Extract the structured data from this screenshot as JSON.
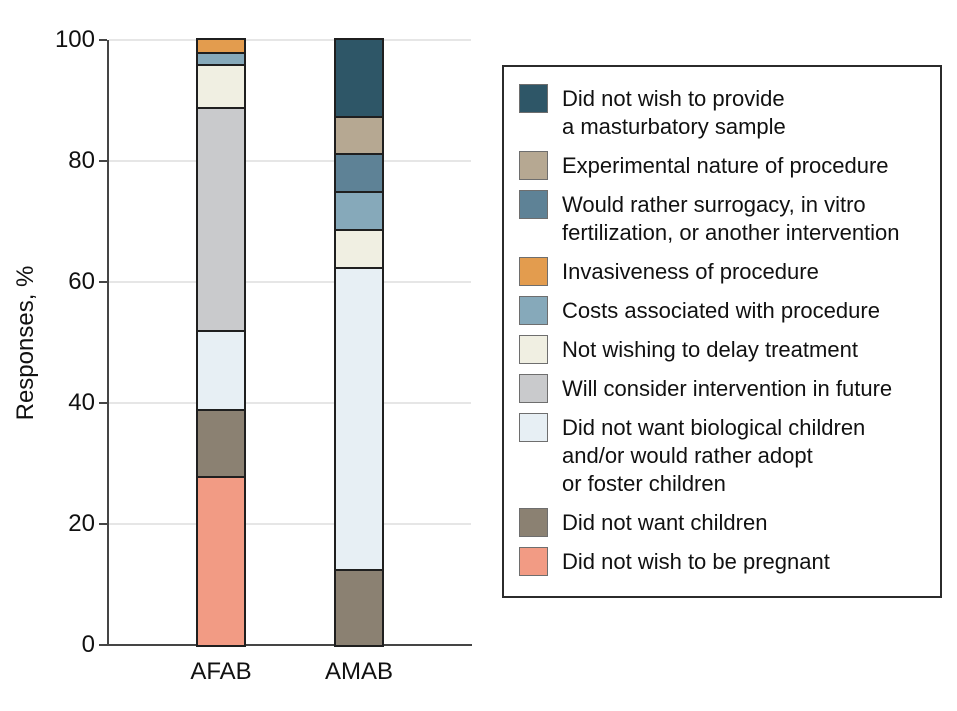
{
  "chart_data": {
    "type": "bar",
    "stacked": true,
    "stack_order": "top-to-bottom",
    "title": "",
    "xlabel": "",
    "ylabel": "Responses, %",
    "ylim": [
      0,
      100
    ],
    "yticks": [
      0,
      20,
      40,
      60,
      80,
      100
    ],
    "grid": true,
    "legend_position": "right",
    "categories": [
      "AFAB",
      "AMAB"
    ],
    "series": [
      {
        "name": "Did not wish to provide a masturbatory sample",
        "label_lines": [
          "Did not wish to provide",
          "a masturbatory sample"
        ],
        "color": "#2e5667",
        "values": [
          0,
          12.5
        ]
      },
      {
        "name": "Experimental nature of procedure",
        "label_lines": [
          "Experimental nature of procedure"
        ],
        "color": "#b6a892",
        "values": [
          0,
          6.25
        ]
      },
      {
        "name": "Would rather surrogacy, in vitro fertilization, or another intervention",
        "label_lines": [
          "Would rather surrogacy, in vitro",
          "fertilization, or another intervention"
        ],
        "color": "#5e8296",
        "values": [
          0,
          6.25
        ]
      },
      {
        "name": "Invasiveness of procedure",
        "label_lines": [
          "Invasiveness of procedure"
        ],
        "color": "#e39c4e",
        "values": [
          2,
          0
        ]
      },
      {
        "name": "Costs associated with procedure",
        "label_lines": [
          "Costs associated with procedure"
        ],
        "color": "#86a9ba",
        "values": [
          2,
          6.25
        ]
      },
      {
        "name": "Not wishing to delay treatment",
        "label_lines": [
          "Not wishing to delay treatment"
        ],
        "color": "#f0efe2",
        "values": [
          7,
          6.25
        ]
      },
      {
        "name": "Will consider intervention in future",
        "label_lines": [
          "Will consider intervention in future"
        ],
        "color": "#c9cacc",
        "values": [
          37,
          0
        ]
      },
      {
        "name": "Did not want biological children and/or would rather adopt or foster children",
        "label_lines": [
          "Did not want biological children",
          "and/or would rather adopt",
          "or foster children"
        ],
        "color": "#e7eff4",
        "values": [
          13,
          50
        ]
      },
      {
        "name": "Did not want children",
        "label_lines": [
          "Did not want children"
        ],
        "color": "#8b8172",
        "values": [
          11,
          12.5
        ]
      },
      {
        "name": "Did not wish to be pregnant",
        "label_lines": [
          "Did not wish to be pregnant"
        ],
        "color": "#f29b84",
        "values": [
          28,
          0
        ]
      }
    ]
  }
}
